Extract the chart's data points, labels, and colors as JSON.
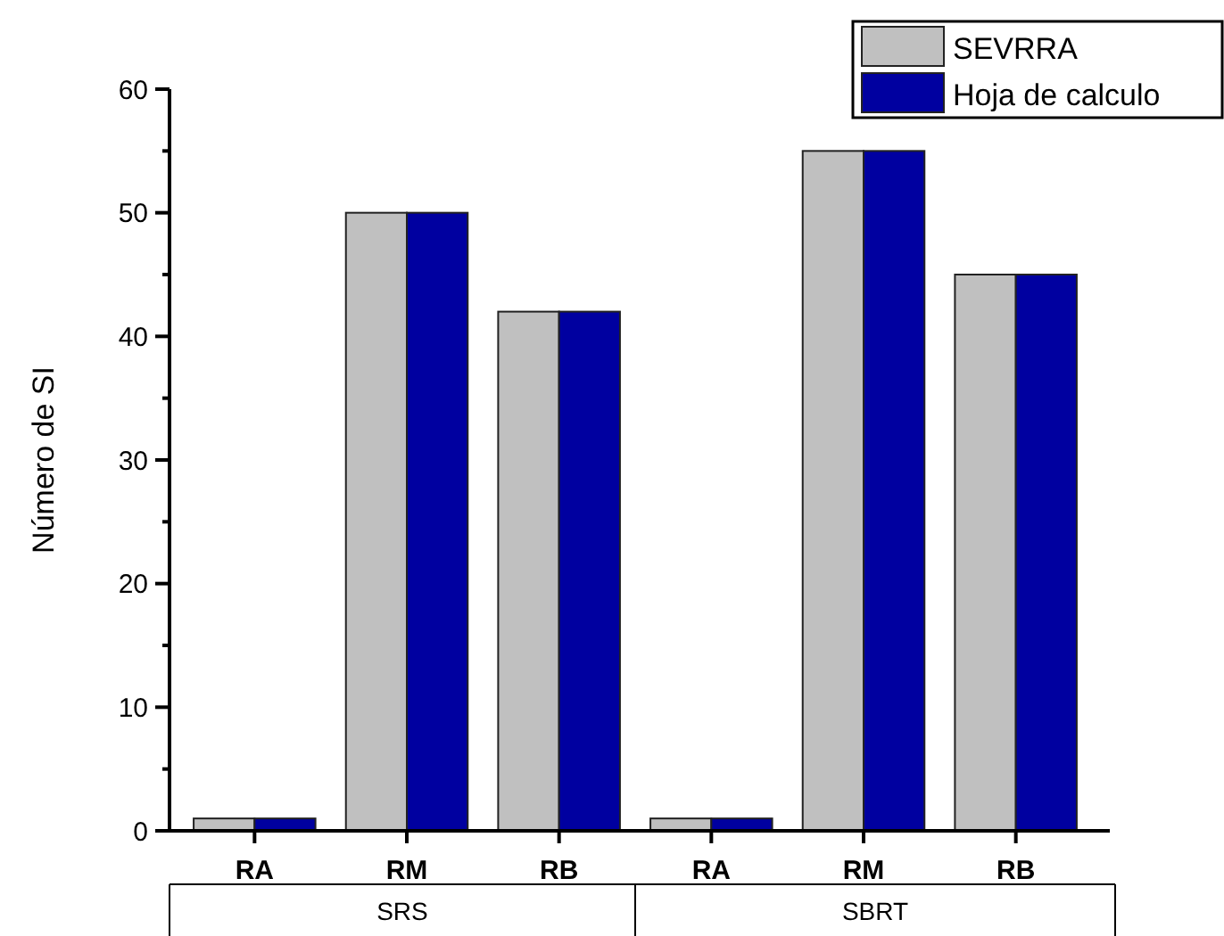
{
  "chart_data": {
    "type": "bar",
    "ylabel": "Número de SI",
    "categories": [
      "RA",
      "RM",
      "RB",
      "RA",
      "RM",
      "RB"
    ],
    "series": [
      {
        "name": "SEVRRA",
        "color": "#c0c0c0",
        "values": [
          1,
          50,
          42,
          1,
          55,
          45
        ]
      },
      {
        "name": "Hoja de calculo",
        "color": "#0000a0",
        "values": [
          1,
          50,
          42,
          1,
          55,
          45
        ]
      }
    ],
    "ylim": [
      0,
      60
    ],
    "yticks": [
      0,
      10,
      20,
      30,
      40,
      50,
      60
    ],
    "grid": false,
    "legend": "top right",
    "annotations": [
      "SRS",
      "SBRT"
    ]
  }
}
